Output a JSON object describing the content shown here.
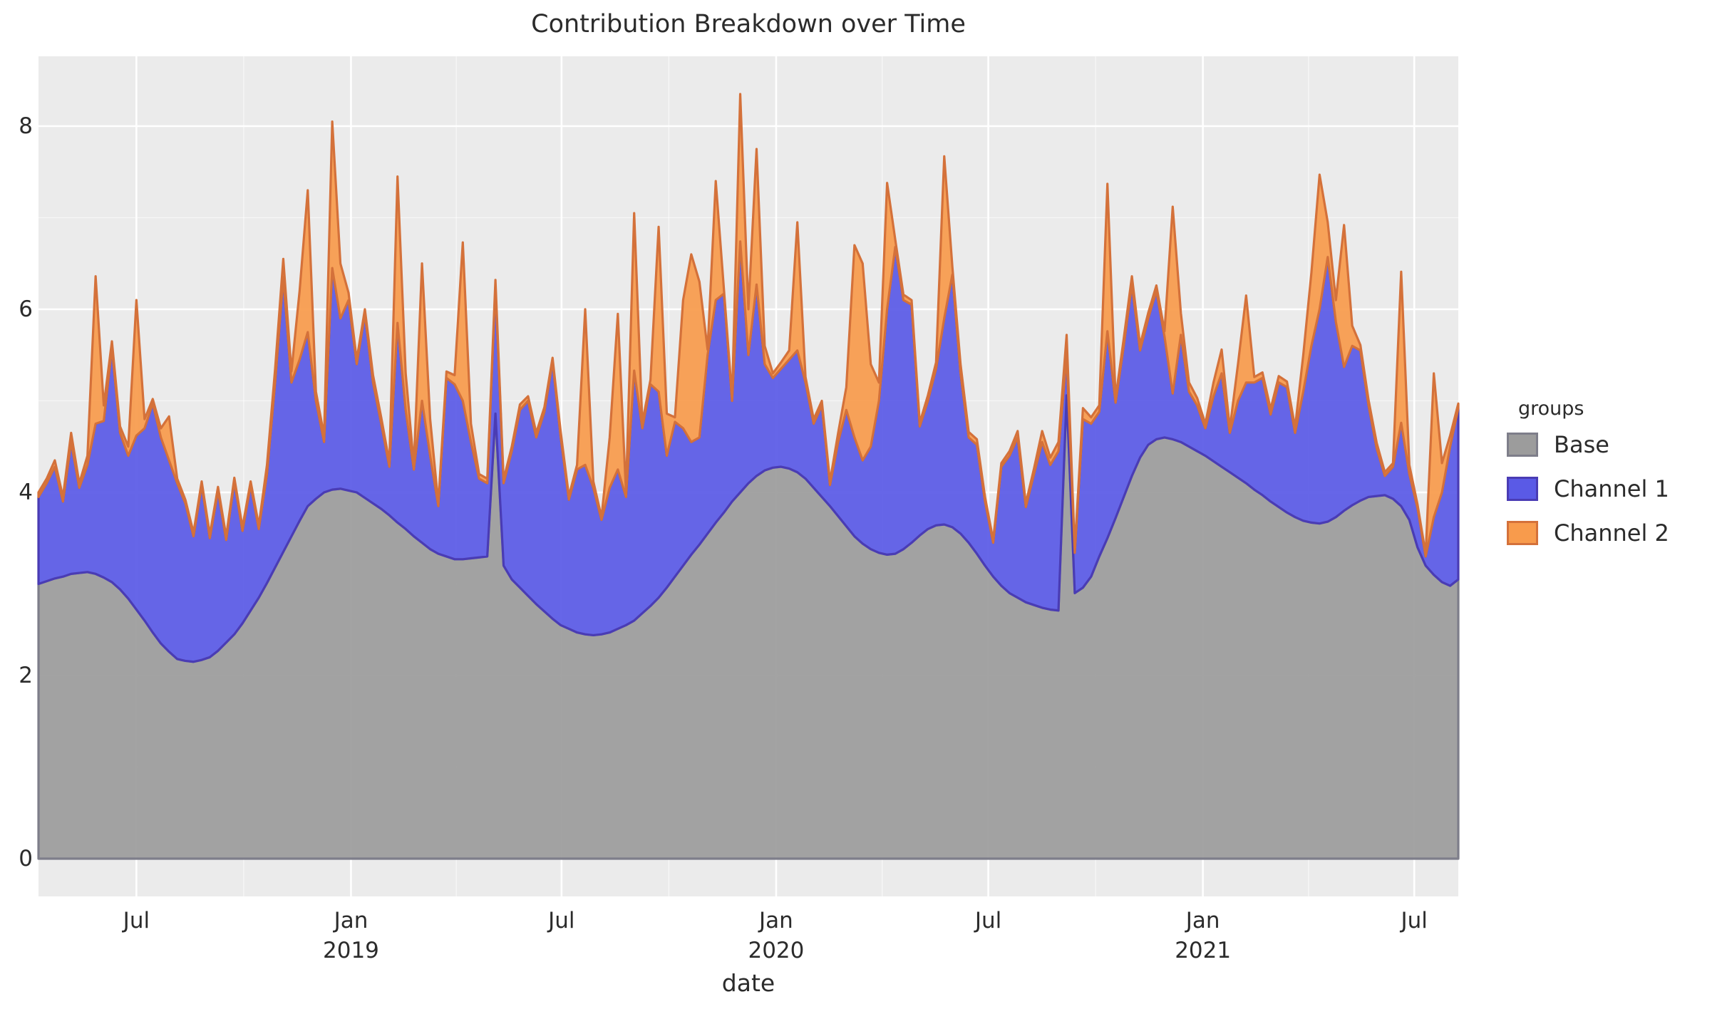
{
  "chart_data": {
    "type": "area",
    "stacked": true,
    "title": "Contribution Breakdown over Time",
    "xlabel": "date",
    "ylabel": "",
    "legend_title": "groups",
    "legend_position": "right",
    "grid": "on",
    "panel_bg": "#ebebeb",
    "grid_color": "#ffffff",
    "ylim": [
      -0.42,
      8.76
    ],
    "y_ticks": [
      0,
      2,
      4,
      6,
      8
    ],
    "y_minor_ticks": [
      1,
      3,
      5,
      7
    ],
    "x_ticks": [
      {
        "label": "Jul",
        "year": "",
        "week": 12
      },
      {
        "label": "Jan",
        "year": "2019",
        "week": 38.3
      },
      {
        "label": "Jul",
        "year": "",
        "week": 64.1
      },
      {
        "label": "Jan",
        "year": "2020",
        "week": 90.4
      },
      {
        "label": "Jul",
        "year": "",
        "week": 116.4
      },
      {
        "label": "Jan",
        "year": "2021",
        "week": 142.7
      },
      {
        "label": "Jul",
        "year": "",
        "week": 168.6
      }
    ],
    "x_minor_weeks": [
      25.15,
      51.2,
      77.25,
      103.4,
      129.55,
      155.65
    ],
    "x_start_label": "Apr 2018",
    "x_end_label": "Aug 2021",
    "frequency": "weekly",
    "series": [
      {
        "name": "Base",
        "fill": "#9c9c9c",
        "stroke": "#7e7e8a",
        "values": [
          3.0,
          3.03,
          3.06,
          3.08,
          3.11,
          3.12,
          3.13,
          3.11,
          3.07,
          3.02,
          2.94,
          2.84,
          2.72,
          2.6,
          2.47,
          2.35,
          2.26,
          2.18,
          2.16,
          2.15,
          2.17,
          2.2,
          2.27,
          2.36,
          2.45,
          2.57,
          2.71,
          2.85,
          3.01,
          3.18,
          3.35,
          3.52,
          3.69,
          3.85,
          3.93,
          4.0,
          4.03,
          4.04,
          4.02,
          4.0,
          3.94,
          3.88,
          3.82,
          3.75,
          3.67,
          3.6,
          3.52,
          3.45,
          3.38,
          3.33,
          3.3,
          3.27,
          3.27,
          3.28,
          3.29,
          3.3,
          4.86,
          3.2,
          3.05,
          2.96,
          2.87,
          2.78,
          2.7,
          2.62,
          2.55,
          2.51,
          2.47,
          2.45,
          2.44,
          2.45,
          2.47,
          2.51,
          2.55,
          2.6,
          2.68,
          2.76,
          2.85,
          2.96,
          3.08,
          3.2,
          3.32,
          3.43,
          3.55,
          3.67,
          3.78,
          3.9,
          4.0,
          4.1,
          4.18,
          4.24,
          4.27,
          4.28,
          4.26,
          4.22,
          4.15,
          4.05,
          3.95,
          3.85,
          3.74,
          3.63,
          3.52,
          3.44,
          3.38,
          3.34,
          3.32,
          3.33,
          3.38,
          3.45,
          3.53,
          3.6,
          3.64,
          3.65,
          3.62,
          3.55,
          3.45,
          3.33,
          3.2,
          3.08,
          2.98,
          2.9,
          2.85,
          2.8,
          2.77,
          2.74,
          2.72,
          2.71,
          5.06,
          2.9,
          2.96,
          3.08,
          3.3,
          3.5,
          3.72,
          3.95,
          4.18,
          4.38,
          4.52,
          4.58,
          4.6,
          4.58,
          4.55,
          4.5,
          4.45,
          4.4,
          4.34,
          4.28,
          4.22,
          4.16,
          4.1,
          4.03,
          3.97,
          3.9,
          3.84,
          3.78,
          3.73,
          3.69,
          3.67,
          3.66,
          3.68,
          3.73,
          3.8,
          3.86,
          3.91,
          3.95,
          3.96,
          3.97,
          3.93,
          3.85,
          3.7,
          3.4,
          3.2,
          3.1,
          3.02,
          2.98,
          3.05
        ]
      },
      {
        "name": "Channel 1",
        "fill": "#5a5ae6",
        "stroke": "#4a3cb4",
        "values": [
          0.95,
          1.07,
          1.22,
          0.82,
          1.44,
          0.93,
          1.17,
          1.64,
          1.71,
          2.56,
          1.71,
          1.56,
          1.9,
          2.1,
          2.5,
          2.25,
          2.09,
          1.92,
          1.72,
          1.37,
          1.91,
          1.3,
          1.75,
          1.12,
          1.67,
          1.01,
          1.37,
          0.75,
          1.19,
          2.02,
          3.0,
          1.68,
          1.76,
          1.9,
          1.07,
          0.55,
          2.42,
          1.86,
          2.08,
          1.4,
          2.01,
          1.32,
          0.93,
          0.53,
          2.18,
          1.3,
          0.73,
          1.55,
          1.02,
          0.52,
          1.95,
          1.91,
          1.73,
          1.27,
          0.86,
          0.8,
          1.39,
          0.9,
          1.4,
          1.94,
          2.13,
          1.82,
          2.18,
          2.81,
          2.05,
          1.41,
          1.78,
          1.85,
          1.61,
          1.25,
          1.58,
          1.74,
          1.4,
          2.73,
          2.02,
          2.42,
          2.25,
          1.44,
          1.69,
          1.5,
          1.23,
          1.17,
          1.95,
          2.43,
          2.39,
          1.1,
          2.74,
          1.4,
          2.09,
          1.16,
          0.98,
          1.07,
          1.19,
          1.33,
          1.05,
          0.7,
          1.0,
          0.23,
          0.81,
          1.27,
          1.08,
          0.91,
          1.12,
          1.66,
          2.68,
          3.35,
          2.72,
          2.6,
          1.19,
          1.4,
          1.71,
          2.25,
          2.76,
          1.75,
          1.15,
          1.19,
          0.7,
          0.37,
          1.3,
          1.5,
          1.75,
          1.04,
          1.43,
          1.81,
          1.58,
          1.74,
          0.44,
          0.44,
          1.84,
          1.67,
          1.58,
          2.26,
          1.26,
          1.65,
          2.09,
          1.17,
          1.38,
          1.62,
          1.1,
          0.5,
          1.17,
          0.6,
          0.5,
          0.3,
          0.71,
          1.02,
          0.43,
          0.84,
          1.1,
          1.17,
          1.28,
          0.95,
          1.36,
          1.37,
          0.92,
          1.41,
          1.93,
          2.34,
          2.89,
          2.13,
          1.57,
          1.74,
          1.64,
          1.0,
          0.52,
          0.21,
          0.35,
          0.91,
          0.5,
          0.43,
          0.1,
          0.63,
          0.98,
          1.52,
          1.87
        ]
      },
      {
        "name": "Channel 2",
        "fill": "#f89b4c",
        "stroke": "#d4713a",
        "values": [
          0.05,
          0.05,
          0.07,
          0.05,
          0.1,
          0.05,
          0.1,
          1.61,
          0.17,
          0.07,
          0.07,
          0.1,
          1.48,
          0.1,
          0.05,
          0.1,
          0.48,
          0.05,
          0.04,
          0.04,
          0.04,
          0.04,
          0.04,
          0.04,
          0.04,
          0.04,
          0.04,
          0.04,
          0.1,
          0.15,
          0.2,
          0.12,
          0.75,
          1.55,
          0.1,
          0.07,
          1.6,
          0.6,
          0.08,
          0.05,
          0.05,
          0.08,
          0.07,
          0.05,
          1.6,
          0.4,
          0.05,
          1.5,
          0.4,
          0.03,
          0.07,
          0.1,
          1.73,
          0.2,
          0.05,
          0.05,
          0.07,
          0.04,
          0.05,
          0.06,
          0.05,
          0.05,
          0.05,
          0.04,
          0.06,
          0.04,
          0.05,
          1.7,
          0.07,
          0.03,
          0.55,
          1.7,
          0.05,
          1.72,
          0.06,
          0.05,
          1.8,
          0.46,
          0.05,
          1.4,
          2.05,
          1.7,
          0.06,
          1.3,
          0.05,
          0.04,
          1.61,
          0.5,
          1.48,
          0.2,
          0.05,
          0.07,
          0.1,
          1.4,
          0.06,
          0.05,
          0.05,
          0.04,
          0.1,
          0.25,
          2.1,
          2.15,
          0.9,
          0.2,
          1.38,
          0.08,
          0.06,
          0.05,
          0.04,
          0.06,
          0.07,
          1.77,
          0.08,
          0.1,
          0.06,
          0.06,
          0.05,
          0.03,
          0.04,
          0.05,
          0.07,
          0.04,
          0.06,
          0.12,
          0.08,
          0.1,
          0.22,
          0.04,
          0.12,
          0.07,
          0.07,
          1.61,
          0.05,
          0.08,
          0.09,
          0.06,
          0.06,
          0.06,
          0.06,
          2.04,
          0.24,
          0.1,
          0.08,
          0.05,
          0.15,
          0.26,
          0.05,
          0.4,
          0.95,
          0.06,
          0.06,
          0.06,
          0.07,
          0.06,
          0.06,
          0.4,
          0.8,
          1.47,
          0.38,
          0.24,
          1.55,
          0.22,
          0.06,
          0.06,
          0.06,
          0.04,
          0.04,
          1.65,
          0.1,
          0.04,
          0.03,
          1.57,
          0.32,
          0.12,
          0.05
        ]
      }
    ]
  }
}
